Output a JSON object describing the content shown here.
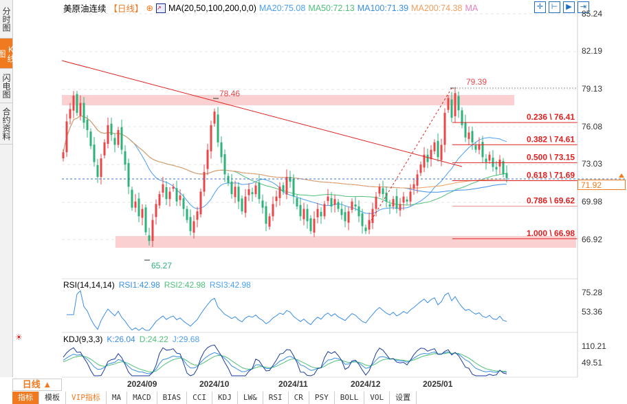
{
  "sidebar": {
    "tabs": [
      {
        "label": "分时图"
      },
      {
        "label": "K线图",
        "active": true
      },
      {
        "label": "闪电图"
      },
      {
        "label": "合约资料"
      }
    ]
  },
  "header": {
    "symbol": "美原油连续",
    "period": "【日线】",
    "indicator": "MA(20,50,100,200,0,0)",
    "ma20": "MA20:75.08",
    "ma50": "MA50:72.13",
    "ma100": "MA100:71.39",
    "ma200": "MA200:74.38",
    "ma": "MA"
  },
  "toolbar_icons": [
    "crosshair-icon",
    "zoom-range-icon",
    "play-icon",
    "jump-end-icon"
  ],
  "colors": {
    "up": "#e8474a",
    "down": "#2db37a",
    "ma20": "#4a9ff5",
    "ma50": "#4fc07a",
    "ma100": "#3a8ee6",
    "ma200": "#f0a060",
    "trend": "#e02020",
    "accent": "#f07a20"
  },
  "price_axis": [
    "85.24",
    "82.19",
    "79.13",
    "76.08",
    "73.03",
    "69.98",
    "66.92"
  ],
  "current_price": "71.92",
  "annotations": {
    "high1": "79.39",
    "high2": "78.46",
    "low": "65.27"
  },
  "fib": [
    {
      "label": "0.236 \\ 76.41",
      "value": 76.41
    },
    {
      "label": "0.382 \\ 74.61",
      "value": 74.61
    },
    {
      "label": "0.500 \\ 73.15",
      "value": 73.15
    },
    {
      "label": "0.618 \\ 71.69",
      "value": 71.69
    },
    {
      "label": "0.786 \\ 69.62",
      "value": 69.62
    },
    {
      "label": "1.000 \\ 66.98",
      "value": 66.98
    }
  ],
  "rsi": {
    "title": "RSI(14,14,14)",
    "rsi1": "RSI1:42.98",
    "rsi2": "RSI2:42.98",
    "rsi3": "RSI3:42.98",
    "axis": [
      "75.28",
      "53.36"
    ]
  },
  "kdj": {
    "title": "KDJ(9,3,3)",
    "k": "K:26.04",
    "d": "D:24.22",
    "j": "J:29.68",
    "axis": [
      "110.21",
      "49.51"
    ]
  },
  "period_button": "日线 ▲",
  "dates": [
    "2024/09",
    "2024/10",
    "2024/11",
    "2024/12",
    "2025/01"
  ],
  "bottom_tabs": [
    "指标",
    "模板",
    "VIP指标",
    "MA",
    "MACD",
    "BIAS",
    "CCI",
    "KDJ",
    "LW&",
    "RSI",
    "CR",
    "PSY",
    "BOLL",
    "VOL",
    "设置"
  ],
  "chart_data": {
    "type": "candlestick",
    "title": "美原油连续 日线",
    "ylim": [
      65,
      85.24
    ],
    "closes": [
      74.0,
      76.5,
      77.5,
      78.6,
      77.2,
      78.0,
      76.4,
      75.8,
      74.5,
      73.2,
      72.0,
      73.5,
      74.8,
      76.2,
      75.4,
      74.6,
      75.8,
      74.2,
      73.0,
      71.2,
      69.5,
      70.0,
      68.8,
      69.4,
      67.5,
      66.8,
      68.5,
      69.8,
      70.6,
      71.4,
      70.2,
      70.8,
      71.2,
      70.0,
      70.5,
      69.4,
      68.5,
      67.6,
      68.4,
      69.2,
      70.8,
      72.4,
      74.2,
      76.2,
      77.3,
      74.8,
      73.6,
      72.2,
      71.5,
      70.6,
      71.2,
      70.0,
      69.2,
      70.4,
      71.0,
      70.6,
      71.3,
      70.2,
      69.5,
      68.2,
      68.8,
      69.8,
      70.4,
      71.2,
      70.8,
      72.0,
      71.6,
      70.4,
      69.6,
      68.8,
      69.4,
      68.4,
      67.6,
      68.6,
      69.4,
      68.8,
      69.8,
      70.4,
      69.6,
      70.2,
      69.4,
      68.9,
      68.4,
      69.2,
      70.0,
      69.6,
      68.8,
      68.0,
      67.6,
      68.5,
      69.4,
      70.4,
      71.2,
      70.6,
      70.0,
      69.6,
      70.2,
      69.4,
      69.8,
      70.4,
      70.0,
      70.8,
      71.4,
      72.2,
      73.0,
      73.8,
      73.2,
      74.2,
      74.8,
      73.6,
      74.6,
      77.2,
      78.4,
      76.8,
      78.8,
      77.4,
      76.2,
      75.2,
      75.6,
      74.8,
      74.2,
      74.6,
      73.6,
      73.2,
      73.8,
      72.8,
      72.6,
      73.4,
      72.2,
      71.9
    ]
  }
}
